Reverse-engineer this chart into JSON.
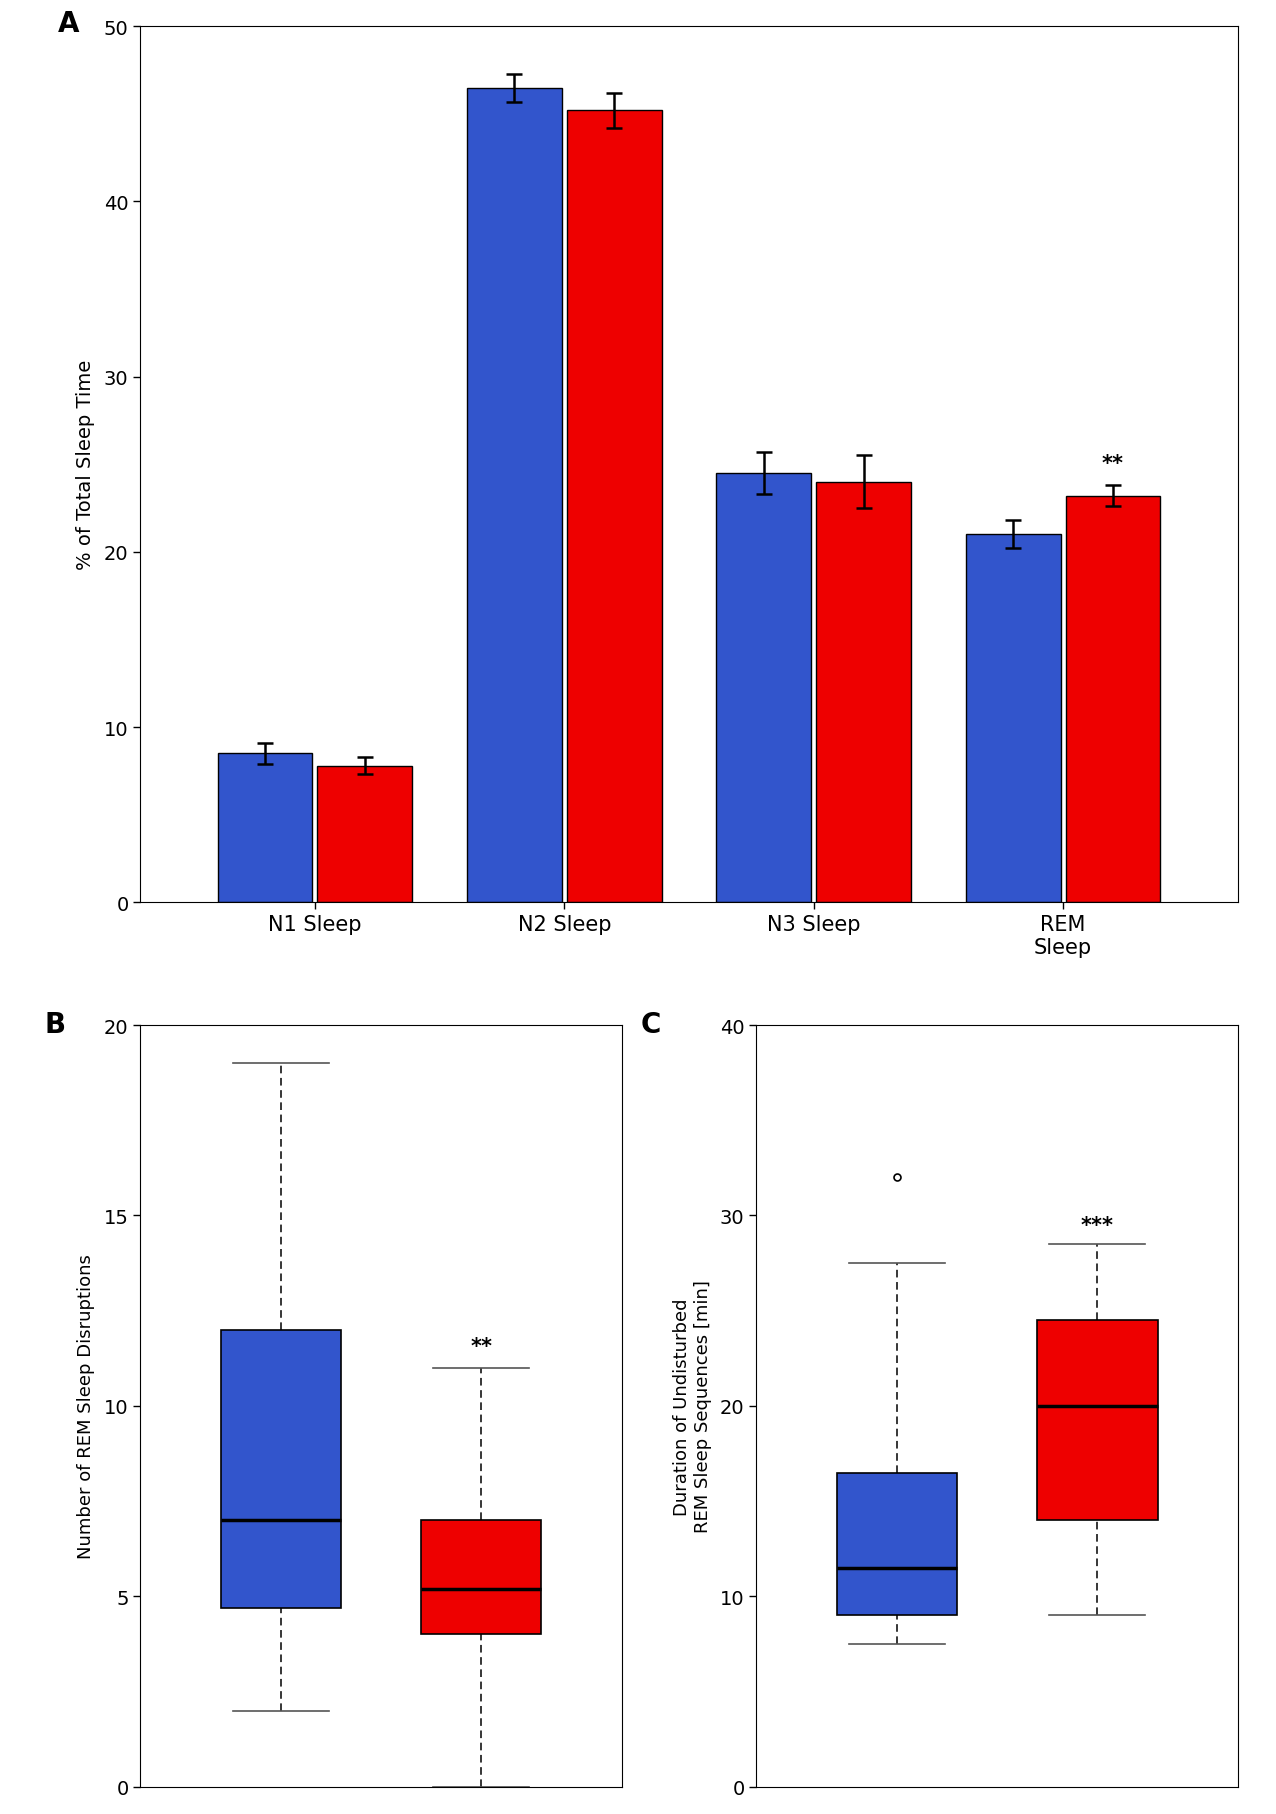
{
  "bar_categories": [
    "N1 Sleep",
    "N2 Sleep",
    "N3 Sleep",
    "REM\nSleep"
  ],
  "bar_blue_means": [
    8.5,
    46.5,
    24.5,
    21.0
  ],
  "bar_red_means": [
    7.8,
    45.2,
    24.0,
    23.2
  ],
  "bar_blue_errors": [
    0.6,
    0.8,
    1.2,
    0.8
  ],
  "bar_red_errors": [
    0.5,
    1.0,
    1.5,
    0.6
  ],
  "bar_ylim": [
    0,
    50
  ],
  "bar_yticks": [
    0,
    10,
    20,
    30,
    40,
    50
  ],
  "bar_ylabel": "% of Total Sleep Time",
  "bar_sig": [
    "",
    "",
    "",
    "**"
  ],
  "blue_color": "#3255CC",
  "red_color": "#EE0000",
  "boxB_blue": {
    "whisker_low": 2.0,
    "q1": 4.7,
    "median": 7.0,
    "q3": 12.0,
    "whisker_high": 19.0
  },
  "boxB_red": {
    "whisker_low": 0.0,
    "q1": 4.0,
    "median": 5.2,
    "q3": 7.0,
    "whisker_high": 11.0
  },
  "boxB_ylim": [
    0,
    20
  ],
  "boxB_yticks": [
    0,
    5,
    10,
    15,
    20
  ],
  "boxB_ylabel": "Number of REM Sleep Disruptions",
  "boxB_sig": "**",
  "boxC_blue": {
    "whisker_low": 7.5,
    "q1": 9.0,
    "median": 11.5,
    "q3": 16.5,
    "whisker_high": 27.5,
    "outlier": 32.0
  },
  "boxC_red": {
    "whisker_low": 9.0,
    "q1": 14.0,
    "median": 20.0,
    "q3": 24.5,
    "whisker_high": 28.5
  },
  "boxC_ylim": [
    0,
    40
  ],
  "boxC_yticks": [
    0,
    10,
    20,
    30,
    40
  ],
  "boxC_ylabel": "Duration of Undisturbed\nREM Sleep Sequences [min]",
  "boxC_sig": "***"
}
